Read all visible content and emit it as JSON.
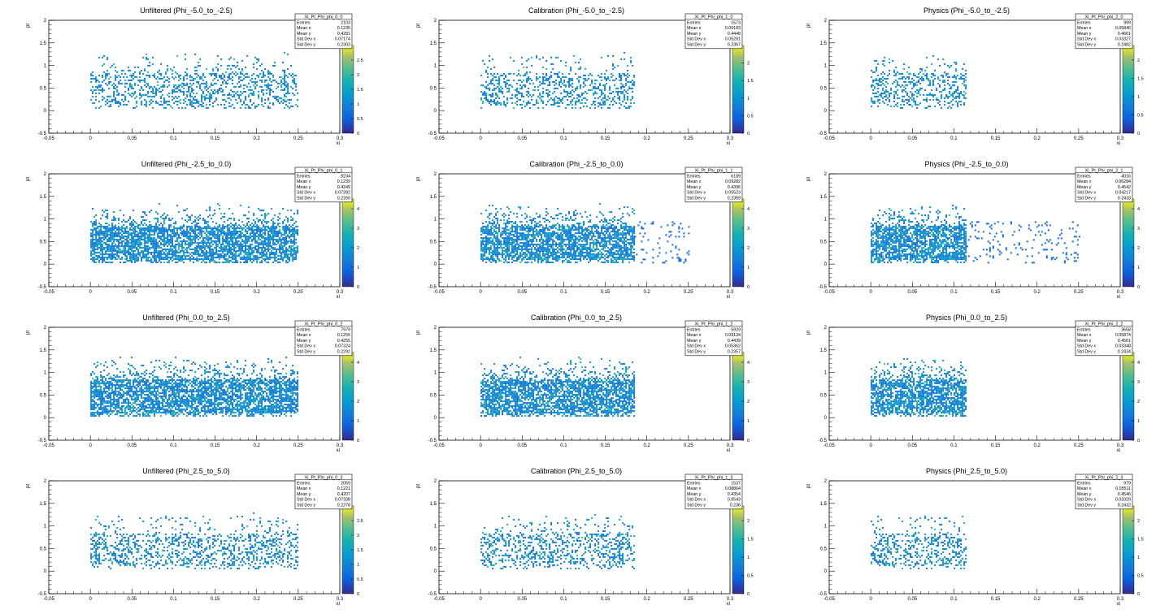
{
  "chart_data": [
    {
      "type": "heatmap",
      "title": "Unfiltered (Phi_-5.0_to_-2.5)",
      "xlabel": "xi",
      "ylabel": "pt",
      "xlim": [
        -0.05,
        0.3
      ],
      "ylim": [
        -0.5,
        2
      ],
      "xticks": [
        "-0.05",
        "0",
        "0.05",
        "0.1",
        "0.15",
        "0.2",
        "0.25",
        "0.3"
      ],
      "yticks": [
        "-0.5",
        "0",
        "0.5",
        "1",
        "1.5",
        "2"
      ],
      "stats": {
        "name": "Xi_Pt_Phi_phi_0_0",
        "rows": [
          [
            "Entries",
            "2103"
          ],
          [
            "Mean x",
            "0.1235"
          ],
          [
            "Mean y",
            "0.4281"
          ],
          [
            "Std Dev x",
            "0.07174"
          ],
          [
            "Std Dev y",
            "0.2303"
          ]
        ]
      },
      "z_max": 3,
      "z_ticks": [
        "0",
        "0.5",
        "1",
        "1.5",
        "2",
        "2.5"
      ],
      "x_range": [
        0.0,
        0.25
      ],
      "y_range": [
        0.05,
        1.3
      ],
      "density": 0.3
    },
    {
      "type": "heatmap",
      "title": "Calibration (Phi_-5.0_to_-2.5)",
      "xlabel": "xi",
      "ylabel": "pt",
      "xlim": [
        -0.05,
        0.3
      ],
      "ylim": [
        -0.5,
        2
      ],
      "xticks": [
        "-0.05",
        "0",
        "0.05",
        "0.1",
        "0.15",
        "0.2",
        "0.25",
        "0.3"
      ],
      "yticks": [
        "-0.5",
        "0",
        "0.5",
        "1",
        "1.5",
        "2"
      ],
      "stats": {
        "name": "Xi_Pt_Phi_phi_1_0",
        "rows": [
          [
            "Entries",
            "1573"
          ],
          [
            "Mean x",
            "0.09183"
          ],
          [
            "Mean y",
            "0.4448"
          ],
          [
            "Std Dev x",
            "0.05281"
          ],
          [
            "Std Dev y",
            "0.2367"
          ]
        ]
      },
      "z_max": 2.5,
      "z_ticks": [
        "0",
        "0.5",
        "1",
        "1.5",
        "2"
      ],
      "x_range": [
        0.0,
        0.185
      ],
      "y_range": [
        0.05,
        1.3
      ],
      "density": 0.3
    },
    {
      "type": "heatmap",
      "title": "Physics (Phi_-5.0_to_-2.5)",
      "xlabel": "xi",
      "ylabel": "pt",
      "xlim": [
        -0.05,
        0.3
      ],
      "ylim": [
        -0.5,
        2
      ],
      "xticks": [
        "-0.05",
        "0",
        "0.05",
        "0.1",
        "0.15",
        "0.2",
        "0.25",
        "0.3"
      ],
      "yticks": [
        "-0.5",
        "0",
        "0.5",
        "1",
        "1.5",
        "2"
      ],
      "stats": {
        "name": "Xi_Pt_Phi_phi_2_0",
        "rows": [
          [
            "Entries",
            "999"
          ],
          [
            "Mean x",
            "0.05846"
          ],
          [
            "Mean y",
            "0.4661"
          ],
          [
            "Std Dev x",
            "0.03327"
          ],
          [
            "Std Dev y",
            "0.2482"
          ]
        ]
      },
      "z_max": 2.4,
      "z_ticks": [
        "0",
        "0.5",
        "1",
        "1.5",
        "2"
      ],
      "x_range": [
        0.0,
        0.115
      ],
      "y_range": [
        0.05,
        1.3
      ],
      "density": 0.3
    },
    {
      "type": "heatmap",
      "title": "Unfiltered (Phi_-2.5_to_0.0)",
      "xlabel": "xi",
      "ylabel": "pt",
      "xlim": [
        -0.05,
        0.3
      ],
      "ylim": [
        -0.5,
        2
      ],
      "xticks": [
        "-0.05",
        "0",
        "0.05",
        "0.1",
        "0.15",
        "0.2",
        "0.25",
        "0.3"
      ],
      "yticks": [
        "-0.5",
        "0",
        "0.5",
        "1",
        "1.5",
        "2"
      ],
      "stats": {
        "name": "Xi_Pt_Phi_phi_0_1",
        "rows": [
          [
            "Entries",
            "8234"
          ],
          [
            "Mean x",
            "0.1239"
          ],
          [
            "Mean y",
            "0.4249"
          ],
          [
            "Std Dev x",
            "0.07282"
          ],
          [
            "Std Dev y",
            "0.2265"
          ]
        ]
      },
      "z_max": 4.5,
      "z_ticks": [
        "0",
        "1",
        "2",
        "3",
        "4"
      ],
      "x_range": [
        0.0,
        0.25
      ],
      "y_range": [
        0.05,
        1.35
      ],
      "density": 0.72
    },
    {
      "type": "heatmap",
      "title": "Calibration (Phi_-2.5_to_0.0)",
      "xlabel": "xi",
      "ylabel": "pt",
      "xlim": [
        -0.05,
        0.3
      ],
      "ylim": [
        -0.5,
        2
      ],
      "xticks": [
        "-0.05",
        "0",
        "0.05",
        "0.1",
        "0.15",
        "0.2",
        "0.25",
        "0.3"
      ],
      "yticks": [
        "-0.5",
        "0",
        "0.5",
        "1",
        "1.5",
        "2"
      ],
      "stats": {
        "name": "Xi_Pt_Phi_phi_1_1",
        "rows": [
          [
            "Entries",
            "6189"
          ],
          [
            "Mean x",
            "0.09282"
          ],
          [
            "Mean y",
            "0.4396"
          ],
          [
            "Std Dev x",
            "0.05523"
          ],
          [
            "Std Dev y",
            "0.2359"
          ]
        ]
      },
      "z_max": 4.5,
      "z_ticks": [
        "0",
        "1",
        "2",
        "3",
        "4"
      ],
      "x_range": [
        0.0,
        0.185
      ],
      "y_range": [
        0.05,
        1.35
      ],
      "density": 0.72,
      "tail": [
        0.185,
        0.25
      ]
    },
    {
      "type": "heatmap",
      "title": "Physics (Phi_-2.5_to_0.0)",
      "xlabel": "xi",
      "ylabel": "pt",
      "xlim": [
        -0.05,
        0.3
      ],
      "ylim": [
        -0.5,
        2
      ],
      "xticks": [
        "-0.05",
        "0",
        "0.05",
        "0.1",
        "0.15",
        "0.2",
        "0.25",
        "0.3"
      ],
      "yticks": [
        "-0.5",
        "0",
        "0.5",
        "1",
        "1.5",
        "2"
      ],
      "stats": {
        "name": "Xi_Pt_Phi_phi_2_1",
        "rows": [
          [
            "Entries",
            "4016"
          ],
          [
            "Mean x",
            "0.06284"
          ],
          [
            "Mean y",
            "0.4542"
          ],
          [
            "Std Dev x",
            "0.04217"
          ],
          [
            "Std Dev y",
            "0.2418"
          ]
        ]
      },
      "z_max": 4.5,
      "z_ticks": [
        "0",
        "1",
        "2",
        "3",
        "4"
      ],
      "x_range": [
        0.0,
        0.115
      ],
      "y_range": [
        0.05,
        1.35
      ],
      "density": 0.72,
      "tail": [
        0.115,
        0.25
      ]
    },
    {
      "type": "heatmap",
      "title": "Unfiltered (Phi_0.0_to_2.5)",
      "xlabel": "xi",
      "ylabel": "pt",
      "xlim": [
        -0.05,
        0.3
      ],
      "ylim": [
        -0.5,
        2
      ],
      "xticks": [
        "-0.05",
        "0",
        "0.05",
        "0.1",
        "0.15",
        "0.2",
        "0.25",
        "0.3"
      ],
      "yticks": [
        "-0.5",
        "0",
        "0.5",
        "1",
        "1.5",
        "2"
      ],
      "stats": {
        "name": "Xi_Pt_Phi_phi_0_2",
        "rows": [
          [
            "Entries",
            "7979"
          ],
          [
            "Mean x",
            "0.1255"
          ],
          [
            "Mean y",
            "0.4255"
          ],
          [
            "Std Dev x",
            "0.07324"
          ],
          [
            "Std Dev y",
            "0.2292"
          ]
        ]
      },
      "z_max": 4.5,
      "z_ticks": [
        "0",
        "1",
        "2",
        "3",
        "4"
      ],
      "x_range": [
        0.0,
        0.25
      ],
      "y_range": [
        0.05,
        1.35
      ],
      "density": 0.72
    },
    {
      "type": "heatmap",
      "title": "Calibration (Phi_0.0_to_2.5)",
      "xlabel": "xi",
      "ylabel": "pt",
      "xlim": [
        -0.05,
        0.3
      ],
      "ylim": [
        -0.5,
        2
      ],
      "xticks": [
        "-0.05",
        "0",
        "0.05",
        "0.1",
        "0.15",
        "0.2",
        "0.25",
        "0.3"
      ],
      "yticks": [
        "-0.5",
        "0",
        "0.5",
        "1",
        "1.5",
        "2"
      ],
      "stats": {
        "name": "Xi_Pt_Phi_phi_1_2",
        "rows": [
          [
            "Entries",
            "5929"
          ],
          [
            "Mean x",
            "0.09134"
          ],
          [
            "Mean y",
            "0.4439"
          ],
          [
            "Std Dev x",
            "0.05362"
          ],
          [
            "Std Dev y",
            "0.2357"
          ]
        ]
      },
      "z_max": 4.5,
      "z_ticks": [
        "0",
        "1",
        "2",
        "3",
        "4"
      ],
      "x_range": [
        0.0,
        0.185
      ],
      "y_range": [
        0.05,
        1.35
      ],
      "density": 0.72
    },
    {
      "type": "heatmap",
      "title": "Physics (Phi_0.0_to_2.5)",
      "xlabel": "xi",
      "ylabel": "pt",
      "xlim": [
        -0.05,
        0.3
      ],
      "ylim": [
        -0.5,
        2
      ],
      "xticks": [
        "-0.05",
        "0",
        "0.05",
        "0.1",
        "0.15",
        "0.2",
        "0.25",
        "0.3"
      ],
      "yticks": [
        "-0.5",
        "0",
        "0.5",
        "1",
        "1.5",
        "2"
      ],
      "stats": {
        "name": "Xi_Pt_Phi_phi_2_2",
        "rows": [
          [
            "Entries",
            "3658"
          ],
          [
            "Mean x",
            "0.05874"
          ],
          [
            "Mean y",
            "0.4561"
          ],
          [
            "Std Dev x",
            "0.03348"
          ],
          [
            "Std Dev y",
            "0.2434"
          ]
        ]
      },
      "z_max": 4.5,
      "z_ticks": [
        "0",
        "1",
        "2",
        "3",
        "4"
      ],
      "x_range": [
        0.0,
        0.115
      ],
      "y_range": [
        0.05,
        1.35
      ],
      "density": 0.72
    },
    {
      "type": "heatmap",
      "title": "Unfiltered (Phi_2.5_to_5.0)",
      "xlabel": "xi",
      "ylabel": "pt",
      "xlim": [
        -0.05,
        0.3
      ],
      "ylim": [
        -0.5,
        2
      ],
      "xticks": [
        "-0.05",
        "0",
        "0.05",
        "0.1",
        "0.15",
        "0.2",
        "0.25",
        "0.3"
      ],
      "yticks": [
        "-0.5",
        "0",
        "0.5",
        "1",
        "1.5",
        "2"
      ],
      "stats": {
        "name": "Xi_Pt_Phi_phi_0_3",
        "rows": [
          [
            "Entries",
            "2059"
          ],
          [
            "Mean x",
            "0.1221"
          ],
          [
            "Mean y",
            "0.4207"
          ],
          [
            "Std Dev x",
            "0.07338"
          ],
          [
            "Std Dev y",
            "0.2278"
          ]
        ]
      },
      "z_max": 3,
      "z_ticks": [
        "0",
        "0.5",
        "1",
        "1.5",
        "2",
        "2.5"
      ],
      "x_range": [
        0.0,
        0.25
      ],
      "y_range": [
        0.05,
        1.3
      ],
      "density": 0.3
    },
    {
      "type": "heatmap",
      "title": "Calibration (Phi_2.5_to_5.0)",
      "xlabel": "xi",
      "ylabel": "pt",
      "xlim": [
        -0.05,
        0.3
      ],
      "ylim": [
        -0.5,
        2
      ],
      "xticks": [
        "-0.05",
        "0",
        "0.05",
        "0.1",
        "0.15",
        "0.2",
        "0.25",
        "0.3"
      ],
      "yticks": [
        "-0.5",
        "0",
        "0.5",
        "1",
        "1.5",
        "2"
      ],
      "stats": {
        "name": "Xi_Pt_Phi_phi_1_3",
        "rows": [
          [
            "Entries",
            "1537"
          ],
          [
            "Mean x",
            "0.08864"
          ],
          [
            "Mean y",
            "0.4354"
          ],
          [
            "Std Dev x",
            "0.0543"
          ],
          [
            "Std Dev y",
            "0.236"
          ]
        ]
      },
      "z_max": 2.4,
      "z_ticks": [
        "0",
        "0.5",
        "1",
        "1.5",
        "2"
      ],
      "x_range": [
        0.0,
        0.185
      ],
      "y_range": [
        0.05,
        1.3
      ],
      "density": 0.3
    },
    {
      "type": "heatmap",
      "title": "Physics (Phi_2.5_to_5.0)",
      "xlabel": "xi",
      "ylabel": "pt",
      "xlim": [
        -0.05,
        0.3
      ],
      "ylim": [
        -0.5,
        2
      ],
      "xticks": [
        "-0.05",
        "0",
        "0.05",
        "0.1",
        "0.15",
        "0.2",
        "0.25",
        "0.3"
      ],
      "yticks": [
        "-0.5",
        "0",
        "0.5",
        "1",
        "1.5",
        "2"
      ],
      "stats": {
        "name": "Xi_Pt_Phi_phi_2_3",
        "rows": [
          [
            "Entries",
            "979"
          ],
          [
            "Mean x",
            "0.05511"
          ],
          [
            "Mean y",
            "0.4546"
          ],
          [
            "Std Dev x",
            "0.03329"
          ],
          [
            "Std Dev y",
            "0.2432"
          ]
        ]
      },
      "z_max": 2.4,
      "z_ticks": [
        "0",
        "0.5",
        "1",
        "1.5",
        "2"
      ],
      "x_range": [
        0.0,
        0.115
      ],
      "y_range": [
        0.05,
        1.3
      ],
      "density": 0.3
    }
  ]
}
